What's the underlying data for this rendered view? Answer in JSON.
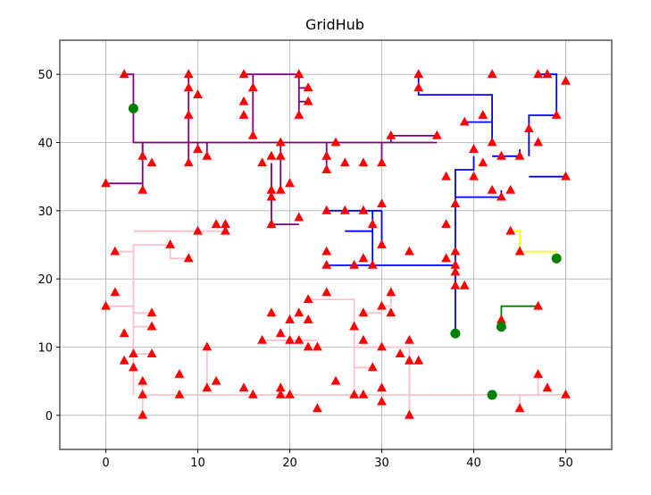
{
  "chart_data": {
    "type": "scatter",
    "title": "GridHub",
    "xlabel": "",
    "ylabel": "",
    "xlim": [
      -5,
      55
    ],
    "ylim": [
      -5,
      55
    ],
    "xticks": [
      0,
      10,
      20,
      30,
      40,
      50
    ],
    "yticks": [
      0,
      10,
      20,
      30,
      40,
      50
    ],
    "grid": true,
    "colors": {
      "purple": "#800080",
      "blue": "#0000ff",
      "pink": "#ffc0cb",
      "yellow": "#ffff00",
      "green": "#008000",
      "marker_red": "#ff0000",
      "hub_green": "#008000"
    },
    "hubs": [
      [
        3,
        45
      ],
      [
        38,
        12
      ],
      [
        43,
        13
      ],
      [
        49,
        23
      ],
      [
        42,
        3
      ]
    ],
    "consumers": [
      [
        2,
        50
      ],
      [
        9,
        50
      ],
      [
        9,
        48
      ],
      [
        10,
        47
      ],
      [
        9,
        44
      ],
      [
        9,
        37
      ],
      [
        10,
        39
      ],
      [
        11,
        38
      ],
      [
        4,
        38
      ],
      [
        5,
        37
      ],
      [
        4,
        33
      ],
      [
        0,
        34
      ],
      [
        15,
        50
      ],
      [
        16,
        48
      ],
      [
        15,
        46
      ],
      [
        15,
        44
      ],
      [
        16,
        41
      ],
      [
        17,
        37
      ],
      [
        18,
        38
      ],
      [
        18,
        33
      ],
      [
        18,
        32
      ],
      [
        19,
        33
      ],
      [
        20,
        34
      ],
      [
        19,
        40
      ],
      [
        19,
        38
      ],
      [
        18,
        28
      ],
      [
        21,
        29
      ],
      [
        21,
        50
      ],
      [
        22,
        48
      ],
      [
        22,
        46
      ],
      [
        21,
        44
      ],
      [
        24,
        38
      ],
      [
        24,
        36
      ],
      [
        25,
        40
      ],
      [
        26,
        37
      ],
      [
        28,
        37
      ],
      [
        30,
        37
      ],
      [
        31,
        41
      ],
      [
        36,
        41
      ],
      [
        34,
        50
      ],
      [
        34,
        48
      ],
      [
        42,
        50
      ],
      [
        42,
        40
      ],
      [
        39,
        43
      ],
      [
        41,
        44
      ],
      [
        40,
        39
      ],
      [
        41,
        37
      ],
      [
        43,
        38
      ],
      [
        42,
        33
      ],
      [
        43,
        32
      ],
      [
        44,
        33
      ],
      [
        40,
        35
      ],
      [
        37,
        35
      ],
      [
        38,
        31
      ],
      [
        37,
        28
      ],
      [
        45,
        38
      ],
      [
        46,
        42
      ],
      [
        47,
        40
      ],
      [
        47,
        50
      ],
      [
        48,
        50
      ],
      [
        50,
        49
      ],
      [
        49,
        44
      ],
      [
        50,
        35
      ],
      [
        24,
        30
      ],
      [
        26,
        30
      ],
      [
        28,
        30
      ],
      [
        30,
        31
      ],
      [
        29,
        28
      ],
      [
        30,
        25
      ],
      [
        24,
        24
      ],
      [
        28,
        23
      ],
      [
        27,
        22
      ],
      [
        29,
        22
      ],
      [
        24,
        22
      ],
      [
        33,
        24
      ],
      [
        37,
        23
      ],
      [
        38,
        24
      ],
      [
        38,
        22
      ],
      [
        38,
        21
      ],
      [
        38,
        19
      ],
      [
        39,
        19
      ],
      [
        44,
        27
      ],
      [
        45,
        24
      ],
      [
        43,
        14
      ],
      [
        47,
        16
      ],
      [
        12,
        28
      ],
      [
        13,
        28
      ],
      [
        13,
        27
      ],
      [
        10,
        27
      ],
      [
        7,
        25
      ],
      [
        9,
        23
      ],
      [
        1,
        24
      ],
      [
        1,
        18
      ],
      [
        0,
        16
      ],
      [
        5,
        15
      ],
      [
        5,
        13
      ],
      [
        2,
        12
      ],
      [
        3,
        9
      ],
      [
        2,
        8
      ],
      [
        3,
        7
      ],
      [
        5,
        9
      ],
      [
        4,
        5
      ],
      [
        4,
        3
      ],
      [
        4,
        0
      ],
      [
        8,
        6
      ],
      [
        8,
        3
      ],
      [
        11,
        10
      ],
      [
        11,
        4
      ],
      [
        12,
        5
      ],
      [
        15,
        4
      ],
      [
        16,
        3
      ],
      [
        17,
        11
      ],
      [
        18,
        15
      ],
      [
        19,
        12
      ],
      [
        20,
        14
      ],
      [
        20,
        11
      ],
      [
        21,
        11
      ],
      [
        21,
        15
      ],
      [
        22,
        17
      ],
      [
        22,
        14
      ],
      [
        22,
        10
      ],
      [
        23,
        10
      ],
      [
        19,
        4
      ],
      [
        19,
        3
      ],
      [
        20,
        3
      ],
      [
        23,
        1
      ],
      [
        25,
        5
      ],
      [
        24,
        18
      ],
      [
        27,
        13
      ],
      [
        28,
        15
      ],
      [
        28,
        11
      ],
      [
        27,
        3
      ],
      [
        28,
        3
      ],
      [
        29,
        7
      ],
      [
        30,
        16
      ],
      [
        30,
        10
      ],
      [
        30,
        4
      ],
      [
        30,
        2
      ],
      [
        31,
        18
      ],
      [
        31,
        15
      ],
      [
        32,
        9
      ],
      [
        33,
        11
      ],
      [
        33,
        8
      ],
      [
        34,
        8
      ],
      [
        33,
        0
      ],
      [
        45,
        1
      ],
      [
        47,
        6
      ],
      [
        48,
        4
      ],
      [
        50,
        3
      ]
    ],
    "lines": [
      {
        "color": "purple",
        "points": [
          [
            2,
            50
          ],
          [
            3,
            50
          ],
          [
            3,
            45
          ]
        ]
      },
      {
        "color": "purple",
        "points": [
          [
            3,
            45
          ],
          [
            3,
            40
          ],
          [
            36,
            40
          ]
        ]
      },
      {
        "color": "purple",
        "points": [
          [
            4,
            40
          ],
          [
            4,
            38
          ]
        ]
      },
      {
        "color": "purple",
        "points": [
          [
            4,
            40
          ],
          [
            4,
            34
          ],
          [
            0,
            34
          ]
        ]
      },
      {
        "color": "purple",
        "points": [
          [
            4,
            34
          ],
          [
            4,
            33
          ]
        ]
      },
      {
        "color": "purple",
        "points": [
          [
            9,
            50
          ],
          [
            9,
            37
          ]
        ]
      },
      {
        "color": "purple",
        "points": [
          [
            10,
            40
          ],
          [
            10,
            39
          ]
        ]
      },
      {
        "color": "purple",
        "points": [
          [
            11,
            40
          ],
          [
            11,
            38
          ]
        ]
      },
      {
        "color": "purple",
        "points": [
          [
            15,
            50
          ],
          [
            21,
            50
          ],
          [
            21,
            44
          ]
        ]
      },
      {
        "color": "purple",
        "points": [
          [
            16,
            50
          ],
          [
            16,
            41
          ]
        ]
      },
      {
        "color": "purple",
        "points": [
          [
            21,
            48
          ],
          [
            22,
            48
          ]
        ]
      },
      {
        "color": "purple",
        "points": [
          [
            21,
            46
          ],
          [
            22,
            46
          ]
        ]
      },
      {
        "color": "purple",
        "points": [
          [
            19,
            40
          ],
          [
            19,
            33
          ]
        ]
      },
      {
        "color": "purple",
        "points": [
          [
            18,
            37
          ],
          [
            18,
            28
          ],
          [
            21,
            28
          ]
        ]
      },
      {
        "color": "purple",
        "points": [
          [
            24,
            40
          ],
          [
            24,
            36
          ]
        ]
      },
      {
        "color": "purple",
        "points": [
          [
            30,
            40
          ],
          [
            30,
            37
          ]
        ]
      },
      {
        "color": "purple",
        "points": [
          [
            31,
            40
          ],
          [
            31,
            41
          ],
          [
            36,
            41
          ]
        ]
      },
      {
        "color": "blue",
        "points": [
          [
            34,
            50
          ],
          [
            34,
            47
          ],
          [
            42,
            47
          ],
          [
            42,
            40
          ]
        ]
      },
      {
        "color": "blue",
        "points": [
          [
            42,
            38
          ],
          [
            45,
            38
          ],
          [
            45,
            39
          ]
        ]
      },
      {
        "color": "blue",
        "points": [
          [
            46,
            35
          ],
          [
            50,
            35
          ]
        ]
      },
      {
        "color": "blue",
        "points": [
          [
            46,
            38
          ],
          [
            46,
            44
          ],
          [
            49,
            44
          ],
          [
            49,
            50
          ],
          [
            47,
            50
          ]
        ]
      },
      {
        "color": "blue",
        "points": [
          [
            39,
            43
          ],
          [
            42,
            43
          ]
        ]
      },
      {
        "color": "blue",
        "points": [
          [
            40,
            38
          ],
          [
            40,
            36
          ],
          [
            38,
            36
          ],
          [
            38,
            12
          ]
        ]
      },
      {
        "color": "blue",
        "points": [
          [
            38,
            32
          ],
          [
            43,
            32
          ],
          [
            43,
            33
          ]
        ]
      },
      {
        "color": "blue",
        "points": [
          [
            24,
            30
          ],
          [
            30,
            30
          ]
        ]
      },
      {
        "color": "blue",
        "points": [
          [
            29,
            30
          ],
          [
            29,
            22
          ]
        ]
      },
      {
        "color": "blue",
        "points": [
          [
            24,
            22
          ],
          [
            38,
            22
          ]
        ]
      },
      {
        "color": "blue",
        "points": [
          [
            26,
            27
          ],
          [
            29,
            27
          ]
        ]
      },
      {
        "color": "blue",
        "points": [
          [
            30,
            30
          ],
          [
            30,
            25
          ]
        ]
      },
      {
        "color": "yellow",
        "points": [
          [
            44,
            27
          ],
          [
            45,
            27
          ],
          [
            45,
            24
          ],
          [
            49,
            24
          ],
          [
            49,
            23
          ]
        ]
      },
      {
        "color": "green",
        "points": [
          [
            43,
            13
          ],
          [
            43,
            16
          ],
          [
            47,
            16
          ]
        ]
      },
      {
        "color": "pink",
        "points": [
          [
            1,
            24
          ],
          [
            3,
            24
          ]
        ]
      },
      {
        "color": "pink",
        "points": [
          [
            3,
            25
          ],
          [
            7,
            25
          ],
          [
            7,
            23
          ],
          [
            9,
            23
          ]
        ]
      },
      {
        "color": "pink",
        "points": [
          [
            3,
            25
          ],
          [
            3,
            3
          ]
        ]
      },
      {
        "color": "pink",
        "points": [
          [
            3,
            27
          ],
          [
            13,
            27
          ]
        ]
      },
      {
        "color": "pink",
        "points": [
          [
            3,
            16
          ],
          [
            0,
            16
          ]
        ]
      },
      {
        "color": "pink",
        "points": [
          [
            3,
            15
          ],
          [
            5,
            15
          ]
        ]
      },
      {
        "color": "pink",
        "points": [
          [
            3,
            13
          ],
          [
            5,
            13
          ]
        ]
      },
      {
        "color": "pink",
        "points": [
          [
            3,
            9
          ],
          [
            5,
            9
          ]
        ]
      },
      {
        "color": "pink",
        "points": [
          [
            4,
            3
          ],
          [
            50,
            3
          ]
        ]
      },
      {
        "color": "pink",
        "points": [
          [
            4,
            5
          ],
          [
            4,
            0
          ]
        ]
      },
      {
        "color": "pink",
        "points": [
          [
            11,
            10
          ],
          [
            11,
            4
          ]
        ]
      },
      {
        "color": "pink",
        "points": [
          [
            17,
            11
          ],
          [
            23,
            11
          ]
        ]
      },
      {
        "color": "pink",
        "points": [
          [
            22,
            17
          ],
          [
            27,
            17
          ],
          [
            27,
            3
          ]
        ]
      },
      {
        "color": "pink",
        "points": [
          [
            27,
            10
          ],
          [
            33,
            10
          ],
          [
            33,
            0
          ]
        ]
      },
      {
        "color": "pink",
        "points": [
          [
            28,
            15
          ],
          [
            30,
            15
          ]
        ]
      },
      {
        "color": "pink",
        "points": [
          [
            30,
            16
          ],
          [
            31,
            16
          ],
          [
            31,
            18
          ]
        ]
      },
      {
        "color": "pink",
        "points": [
          [
            27,
            7
          ],
          [
            29,
            7
          ]
        ]
      },
      {
        "color": "pink",
        "points": [
          [
            45,
            3
          ],
          [
            45,
            1
          ]
        ]
      },
      {
        "color": "pink",
        "points": [
          [
            47,
            3
          ],
          [
            47,
            6
          ]
        ]
      }
    ]
  }
}
